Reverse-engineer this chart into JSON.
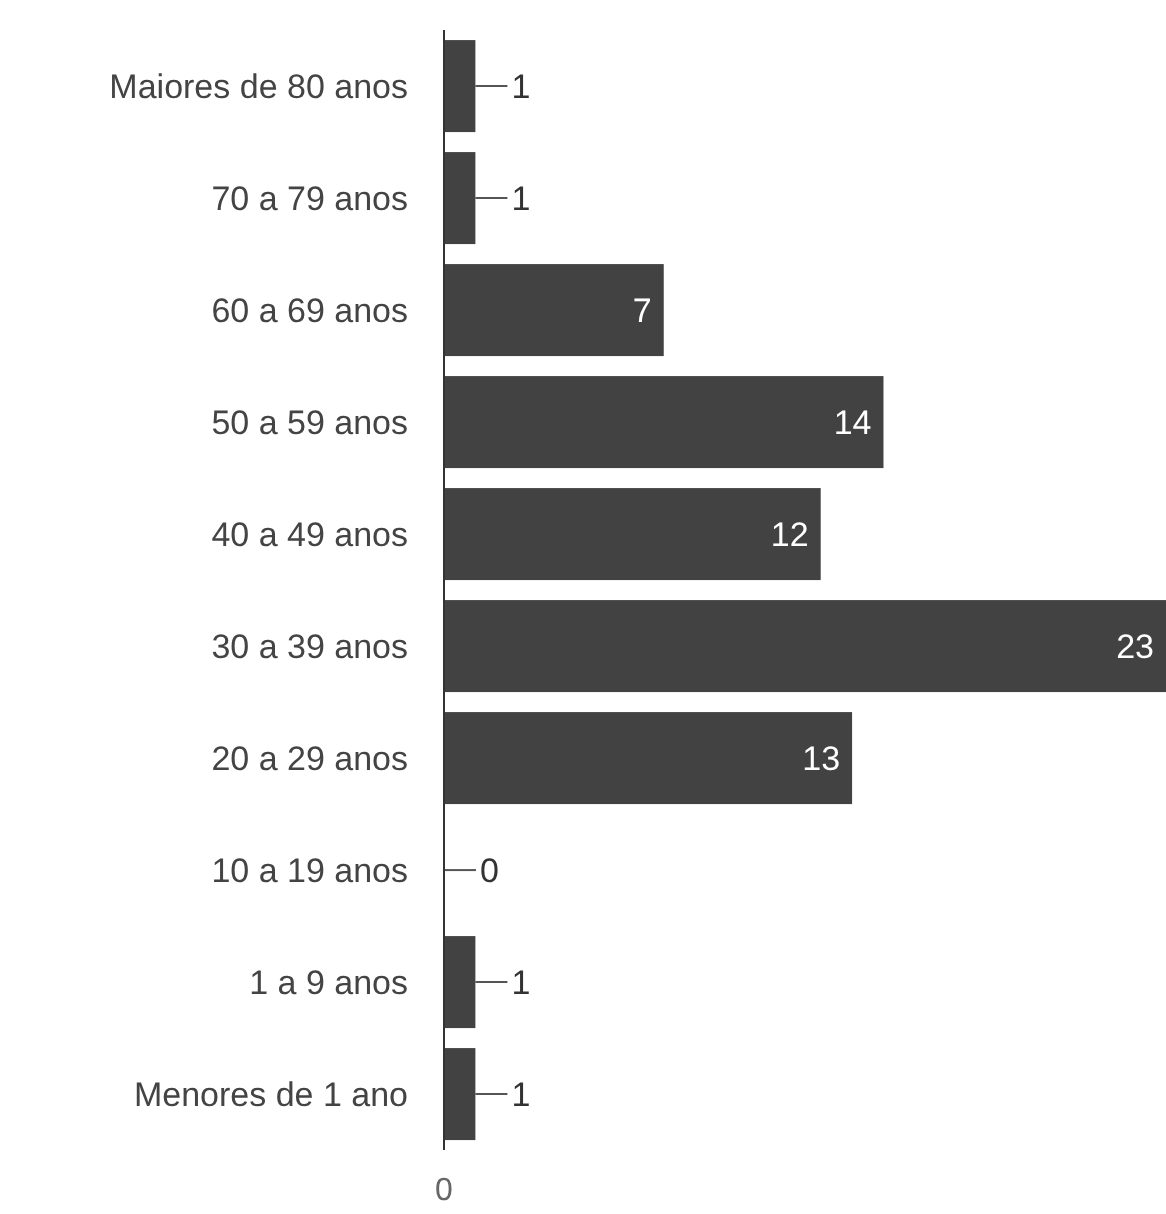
{
  "chart_data": {
    "type": "bar",
    "orientation": "horizontal",
    "categories": [
      "Maiores de 80 anos",
      "70 a 79 anos",
      "60 a 69 anos",
      "50 a 59 anos",
      "40 a 49 anos",
      "30 a 39 anos",
      "20 a 29 anos",
      "10 a 19 anos",
      "1 a 9 anos",
      "Menores de 1 ano"
    ],
    "values": [
      1,
      1,
      7,
      14,
      12,
      23,
      13,
      0,
      1,
      1
    ],
    "color": "#424242",
    "xlim": [
      0,
      23
    ],
    "data_labels": true,
    "annotations": [
      "0"
    ]
  }
}
